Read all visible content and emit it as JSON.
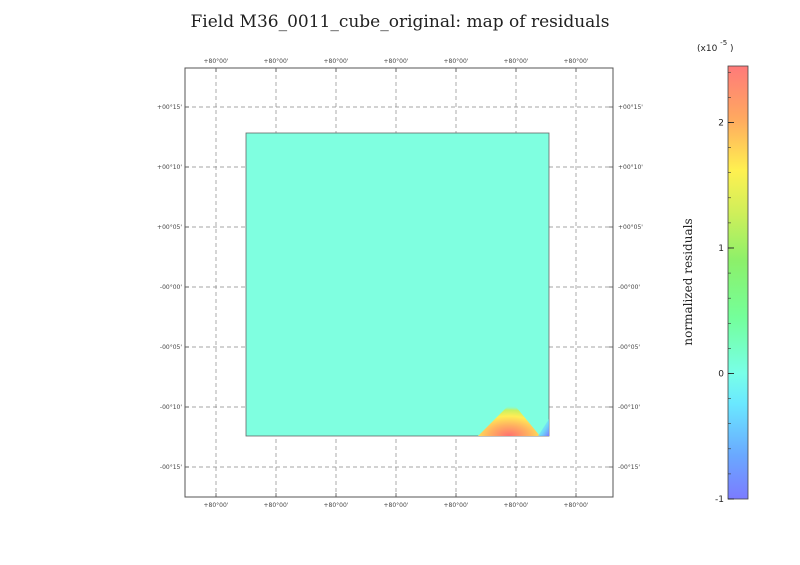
{
  "title": "Field M36_0011_cube_original: map of residuals",
  "chart_data": {
    "type": "heatmap",
    "title": "Field M36_0011_cube_original: map of residuals",
    "x_tick_labels": [
      "+80°00'",
      "+80°00'",
      "+80°00'",
      "+80°00'",
      "+80°00'",
      "+80°00'",
      "+80°00'"
    ],
    "y_tick_labels": [
      "+00°15'",
      "+00°10'",
      "+00°05'",
      "-00°00'",
      "-00°05'",
      "-00°10'",
      "-00°15'"
    ],
    "grid": true,
    "colorbar": {
      "label": "normalized residuals",
      "scale_label": "(x10",
      "scale_exponent": "-5",
      "scale_close": ")",
      "range": [
        -1.0,
        2.45
      ],
      "ticks": [
        -1,
        0,
        1,
        2
      ],
      "tick_labels": [
        "-1",
        "0",
        "1",
        "2"
      ],
      "colormap": "rainbow"
    },
    "field_value_background": 0.0,
    "hotspot": {
      "location": "bottom-right corner",
      "peak_value": 2.4,
      "corner_value": -0.8
    }
  }
}
